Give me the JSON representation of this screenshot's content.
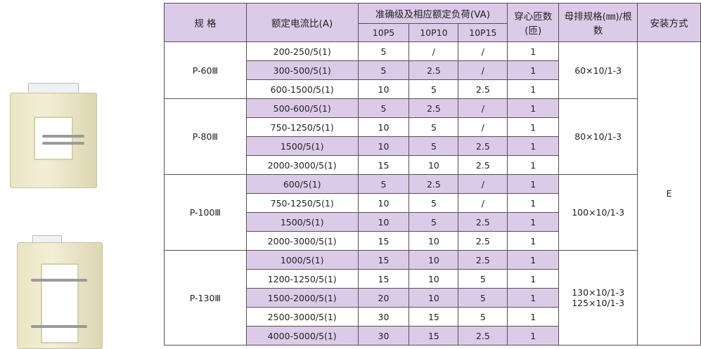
{
  "header": {
    "model": "规 格",
    "ratio": "额定电流比(A)",
    "accuracy": "准确级及相应额定负荷(VA)",
    "classes": [
      "10P5",
      "10P10",
      "10P15"
    ],
    "turns": "穿心匝数(匝)",
    "busbar": "母排规格(㎜)/根数",
    "install": "安装方式"
  },
  "install_value": "E",
  "groups": [
    {
      "model": "P-60Ⅲ",
      "busbar": "60×10/1-3",
      "rows": [
        [
          "200-250/5(1)",
          "5",
          "/",
          "/",
          "1"
        ],
        [
          "300-500/5(1)",
          "5",
          "2.5",
          "/",
          "1"
        ],
        [
          "600-1500/5(1)",
          "10",
          "5",
          "2.5",
          "1"
        ]
      ]
    },
    {
      "model": "P-80Ⅲ",
      "busbar": "80×10/1-3",
      "rows": [
        [
          "500-600/5(1)",
          "5",
          "2.5",
          "/",
          "1"
        ],
        [
          "750-1250/5(1)",
          "10",
          "5",
          "/",
          "1"
        ],
        [
          "1500/5(1)",
          "10",
          "5",
          "2.5",
          "1"
        ],
        [
          "2000-3000/5(1)",
          "15",
          "10",
          "2.5",
          "1"
        ]
      ]
    },
    {
      "model": "P-100Ⅲ",
      "busbar": "100×10/1-3",
      "rows": [
        [
          "600/5(1)",
          "5",
          "2.5",
          "/",
          "1"
        ],
        [
          "750-1250/5(1)",
          "10",
          "5",
          "/",
          "1"
        ],
        [
          "1500/5(1)",
          "10",
          "5",
          "2.5",
          "1"
        ],
        [
          "2000-3000/5(1)",
          "15",
          "10",
          "2.5",
          "1"
        ]
      ]
    },
    {
      "model": "P-130Ⅲ",
      "busbar": "130×10/1-3\n125×10/1-3",
      "rows": [
        [
          "1000/5(1)",
          "15",
          "10",
          "2.5",
          "1"
        ],
        [
          "1200-1250/5(1)",
          "15",
          "10",
          "5",
          "1"
        ],
        [
          "1500-2000/5(1)",
          "20",
          "10",
          "5",
          "1"
        ],
        [
          "2500-3000/5(1)",
          "30",
          "15",
          "5",
          "1"
        ],
        [
          "4000-5000/5(1)",
          "30",
          "15",
          "2.5",
          "1"
        ]
      ]
    }
  ],
  "colors": {
    "header_bg": "#dccbe8",
    "shaded_row": "#dccbe8",
    "border": "#5a4e4e"
  }
}
